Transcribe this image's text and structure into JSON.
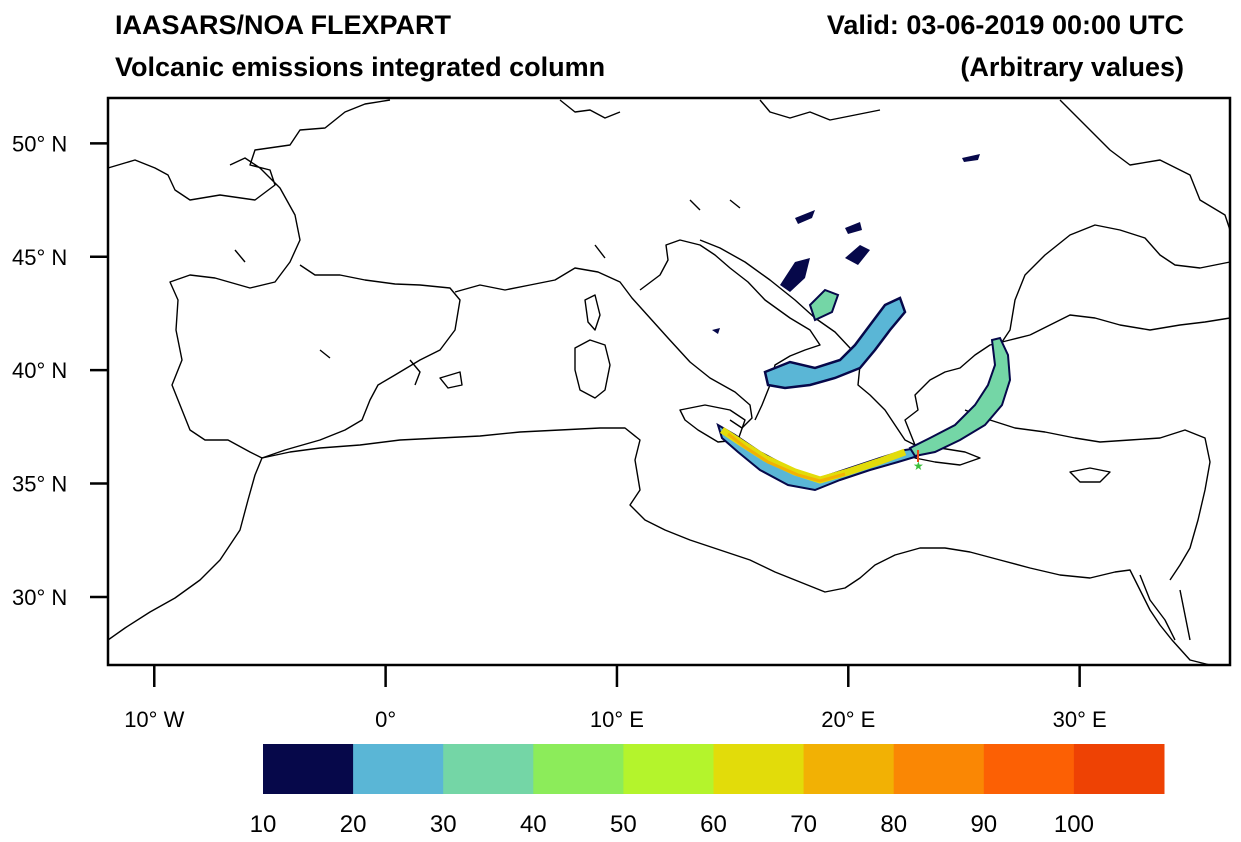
{
  "header": {
    "title_line1": "IAASARS/NOA FLEXPART",
    "title_line2": "Volcanic emissions integrated column",
    "valid": "Valid: 03-06-2019 00:00 UTC",
    "units": "(Arbitrary values)"
  },
  "map": {
    "lon_range": [
      -12,
      36.5
    ],
    "lat_range": [
      27,
      52
    ],
    "y_ticks": [
      {
        "lat": 50,
        "label": "50° N"
      },
      {
        "lat": 45,
        "label": "45° N"
      },
      {
        "lat": 40,
        "label": "40° N"
      },
      {
        "lat": 35,
        "label": "35° N"
      },
      {
        "lat": 30,
        "label": "30° N"
      }
    ],
    "x_ticks": [
      {
        "lon": -10,
        "label": "10° W"
      },
      {
        "lon": 0,
        "label": "0°"
      },
      {
        "lon": 10,
        "label": "10° E"
      },
      {
        "lon": 20,
        "label": "20° E"
      },
      {
        "lon": 30,
        "label": "30° E"
      }
    ],
    "coastline_color": "#000000",
    "background": "#ffffff"
  },
  "colorbar": {
    "bins": [
      {
        "color": "#06084a"
      },
      {
        "color": "#5ab6d6"
      },
      {
        "color": "#74d6a6"
      },
      {
        "color": "#8cec5a"
      },
      {
        "color": "#b4f42c"
      },
      {
        "color": "#e2dc0a"
      },
      {
        "color": "#f2b104"
      },
      {
        "color": "#fa8704"
      },
      {
        "color": "#fc6004"
      },
      {
        "color": "#ee4204"
      }
    ],
    "labels": [
      "10",
      "20",
      "30",
      "40",
      "50",
      "60",
      "70",
      "80",
      "90",
      "100"
    ]
  }
}
